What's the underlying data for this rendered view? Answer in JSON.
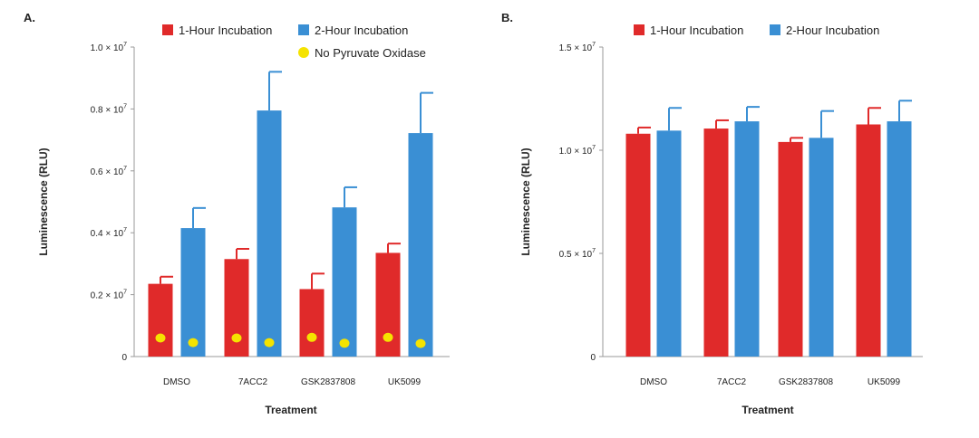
{
  "colors": {
    "red": "#e02a2a",
    "blue": "#3a8fd4",
    "yellow": "#f5e300",
    "axis": "#9a9a9a"
  },
  "chart_data": [
    {
      "panel_label": "A.",
      "type": "bar",
      "xlabel": "Treatment",
      "ylabel": "Luminescence (RLU)",
      "ylim": [
        0,
        10000000
      ],
      "yticks": [
        {
          "value": 0,
          "label": "0"
        },
        {
          "value": 2000000,
          "mant": "0.2 × 10",
          "exp": "7"
        },
        {
          "value": 4000000,
          "mant": "0.4 × 10",
          "exp": "7"
        },
        {
          "value": 6000000,
          "mant": "0.6 × 10",
          "exp": "7"
        },
        {
          "value": 8000000,
          "mant": "0.8 × 10",
          "exp": "7"
        },
        {
          "value": 10000000,
          "mant": "1.0 × 10",
          "exp": "7"
        }
      ],
      "categories": [
        "DMSO",
        "7ACC2",
        "GSK2837808",
        "UK5099"
      ],
      "series": [
        {
          "name": "1-Hour Incubation",
          "color": "#e02a2a",
          "values": [
            2350000,
            3150000,
            2180000,
            3350000
          ],
          "errors": [
            230000,
            330000,
            500000,
            300000
          ]
        },
        {
          "name": "2-Hour Incubation",
          "color": "#3a8fd4",
          "values": [
            4150000,
            7950000,
            4820000,
            7220000
          ],
          "errors": [
            650000,
            1250000,
            650000,
            1300000
          ]
        }
      ],
      "points": {
        "name": "No Pyruvate Oxidase",
        "color": "#f5e300",
        "values": [
          [
            600000,
            450000
          ],
          [
            600000,
            450000
          ],
          [
            620000,
            430000
          ],
          [
            620000,
            420000
          ]
        ]
      },
      "legend_position": "top"
    },
    {
      "panel_label": "B.",
      "type": "bar",
      "xlabel": "Treatment",
      "ylabel": "Luminescence (RLU)",
      "ylim": [
        0,
        15000000
      ],
      "yticks": [
        {
          "value": 0,
          "label": "0"
        },
        {
          "value": 5000000,
          "mant": "0.5 × 10",
          "exp": "7"
        },
        {
          "value": 10000000,
          "mant": "1.0 × 10",
          "exp": "7"
        },
        {
          "value": 15000000,
          "mant": "1.5 × 10",
          "exp": "7"
        }
      ],
      "categories": [
        "DMSO",
        "7ACC2",
        "GSK2837808",
        "UK5099"
      ],
      "series": [
        {
          "name": "1-Hour Incubation",
          "color": "#e02a2a",
          "values": [
            10800000,
            11050000,
            10400000,
            11250000
          ],
          "errors": [
            300000,
            400000,
            200000,
            800000
          ]
        },
        {
          "name": "2-Hour Incubation",
          "color": "#3a8fd4",
          "values": [
            10950000,
            11400000,
            10600000,
            11400000
          ],
          "errors": [
            1100000,
            700000,
            1300000,
            1000000
          ]
        }
      ],
      "legend_position": "top"
    }
  ]
}
